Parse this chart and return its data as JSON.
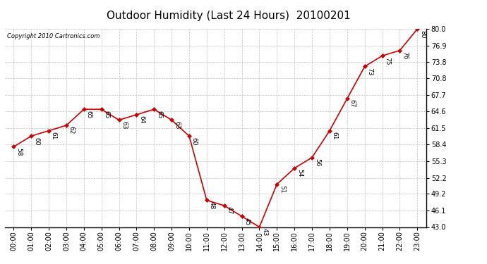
{
  "title": "Outdoor Humidity (Last 24 Hours)  20100201",
  "copyright": "Copyright 2010 Cartronics.com",
  "x_labels": [
    "00:00",
    "01:00",
    "02:00",
    "03:00",
    "04:00",
    "05:00",
    "06:00",
    "07:00",
    "08:00",
    "09:00",
    "10:00",
    "11:00",
    "12:00",
    "13:00",
    "14:00",
    "15:00",
    "16:00",
    "17:00",
    "18:00",
    "19:00",
    "20:00",
    "21:00",
    "22:00",
    "23:00"
  ],
  "x_values": [
    0,
    1,
    2,
    3,
    4,
    5,
    6,
    7,
    8,
    9,
    10,
    11,
    12,
    13,
    14,
    15,
    16,
    17,
    18,
    19,
    20,
    21,
    22,
    23
  ],
  "y_values": [
    58,
    60,
    61,
    62,
    65,
    65,
    63,
    64,
    65,
    63,
    60,
    48,
    47,
    45,
    43,
    51,
    54,
    56,
    61,
    67,
    73,
    75,
    76,
    80
  ],
  "y_labels": [
    "43.0",
    "46.1",
    "49.2",
    "52.2",
    "55.3",
    "58.4",
    "61.5",
    "64.6",
    "67.7",
    "70.8",
    "73.8",
    "76.9",
    "80.0"
  ],
  "y_tick_vals": [
    43.0,
    46.1,
    49.2,
    52.2,
    55.3,
    58.4,
    61.5,
    64.6,
    67.7,
    70.8,
    73.8,
    76.9,
    80.0
  ],
  "ylim": [
    43.0,
    80.0
  ],
  "line_color": "#cc0000",
  "marker_color": "#cc0000",
  "bg_color": "#ffffff",
  "grid_color": "#c0c0c0",
  "title_fontsize": 11,
  "annotation_fontsize": 6.5,
  "tick_fontsize": 7,
  "copyright_fontsize": 6
}
